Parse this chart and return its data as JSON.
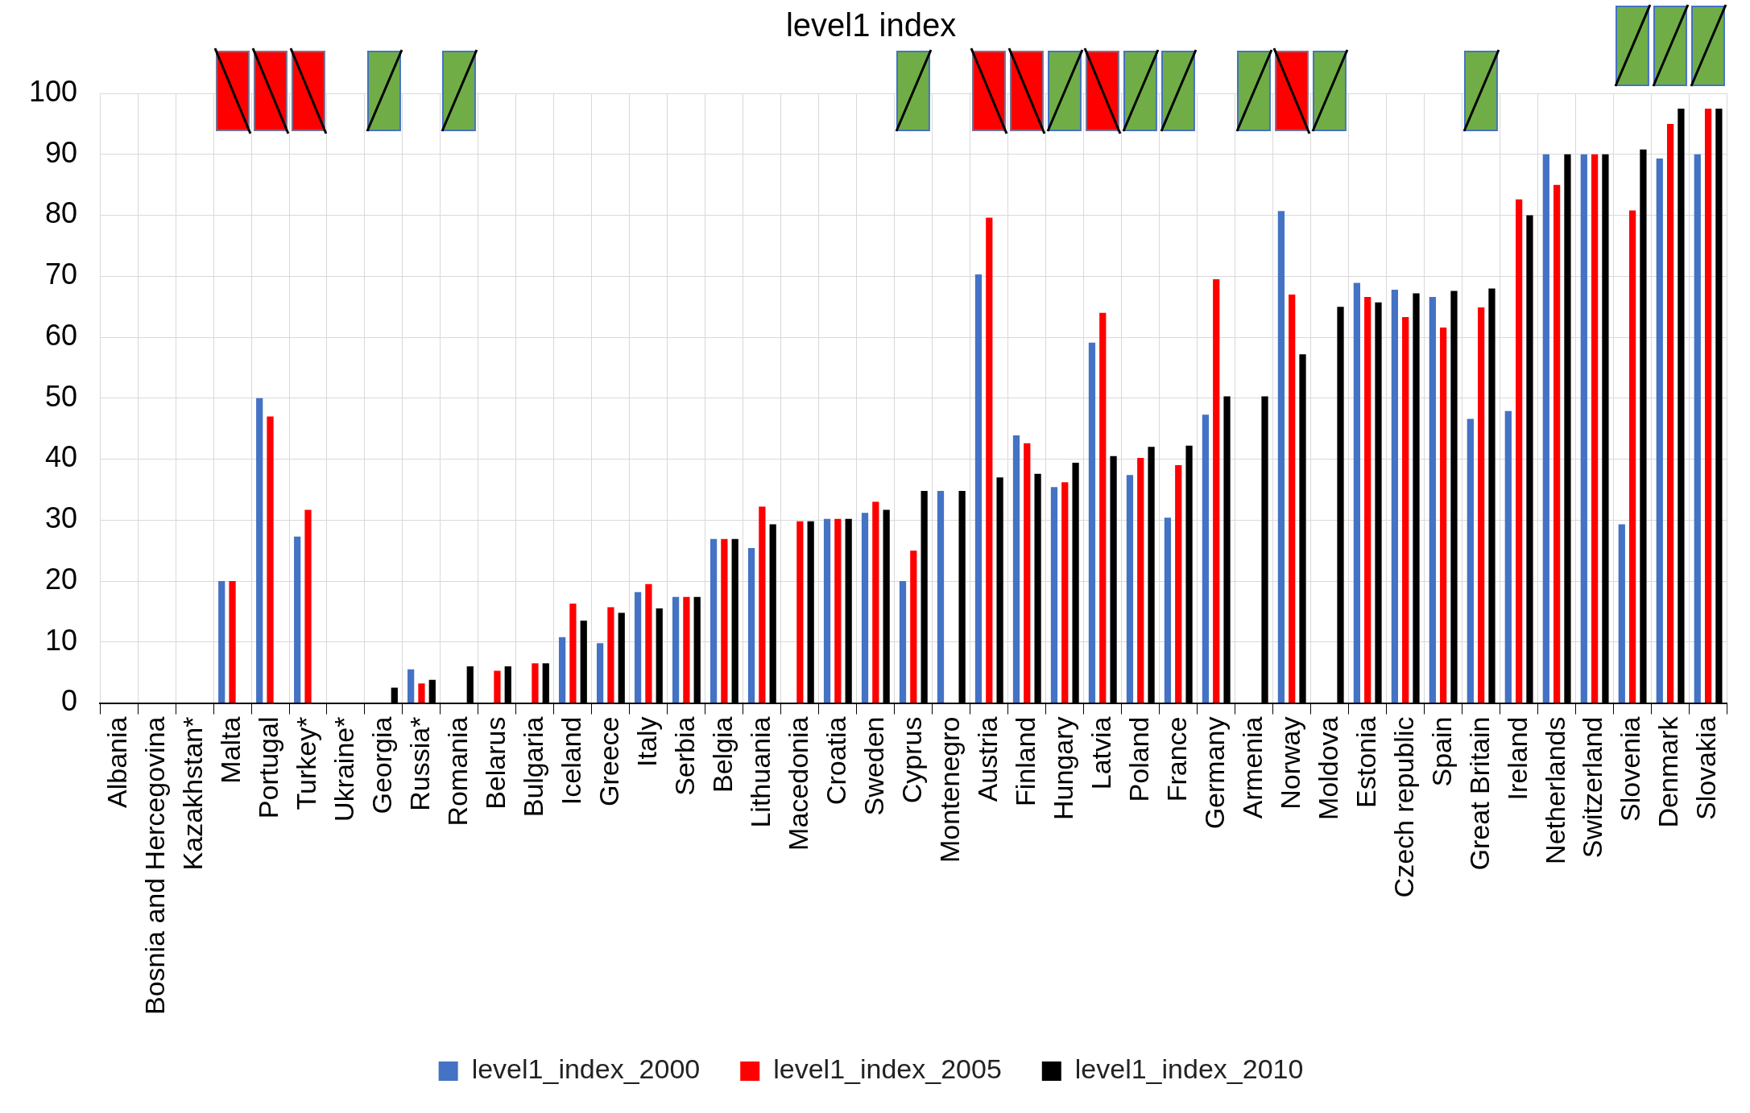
{
  "chart_data": {
    "type": "bar",
    "title": "level1 index",
    "categories": [
      "Albania",
      "Bosnia and Hercegovina",
      "Kazakhstan*",
      "Malta",
      "Portugal",
      "Turkey*",
      "Ukraine*",
      "Georgia",
      "Russia*",
      "Romania",
      "Belarus",
      "Bulgaria",
      "Iceland",
      "Greece",
      "Italy",
      "Serbia",
      "Belgia",
      "Lithuania",
      "Macedonia",
      "Croatia",
      "Sweden",
      "Cyprus",
      "Montenegro",
      "Austria",
      "Finland",
      "Hungary",
      "Latvia",
      "Poland",
      "France",
      "Germany",
      "Armenia",
      "Norway",
      "Moldova",
      "Estonia",
      "Czech republic",
      "Spain",
      "Great Britain",
      "Ireland",
      "Netherlands",
      "Switzerland",
      "Slovenia",
      "Denmark",
      "Slovakia"
    ],
    "series": [
      {
        "name": "level1_index_2000",
        "color": "#4472c4",
        "values": [
          null,
          null,
          null,
          20,
          50,
          27.3,
          null,
          null,
          5.5,
          null,
          null,
          null,
          10.8,
          9.8,
          18.2,
          17.4,
          26.9,
          25.4,
          null,
          30.2,
          31.2,
          20,
          34.8,
          70.3,
          43.9,
          35.4,
          59.1,
          37.4,
          30.4,
          47.3,
          null,
          80.7,
          null,
          68.9,
          67.8,
          66.6,
          46.6,
          47.9,
          90,
          90,
          29.3,
          89.3,
          90
        ]
      },
      {
        "name": "level1_index_2005",
        "color": "#ff0000",
        "values": [
          null,
          null,
          null,
          20,
          47,
          31.7,
          null,
          null,
          3.2,
          null,
          5.3,
          6.5,
          16.3,
          15.7,
          19.5,
          17.4,
          26.9,
          32.2,
          29.8,
          30.2,
          33,
          25,
          null,
          79.6,
          42.6,
          36.2,
          64,
          40.2,
          39,
          69.5,
          null,
          67,
          null,
          66.6,
          63.3,
          61.6,
          64.9,
          82.6,
          85,
          90,
          80.8,
          95,
          97.5
        ]
      },
      {
        "name": "level1_index_2010",
        "color": "#000000",
        "values": [
          null,
          null,
          null,
          null,
          null,
          null,
          null,
          2.5,
          3.8,
          6,
          6,
          6.5,
          13.5,
          14.8,
          15.5,
          17.4,
          26.9,
          29.3,
          29.8,
          30.2,
          31.7,
          34.8,
          34.8,
          37,
          37.6,
          39.4,
          40.5,
          42,
          42.2,
          50.3,
          50.3,
          57.2,
          65,
          65.7,
          67.2,
          67.6,
          68,
          80,
          90,
          90,
          90.8,
          97.5,
          97.5
        ]
      }
    ],
    "ylim": [
      0,
      100
    ],
    "yticks": [
      0,
      10,
      20,
      30,
      40,
      50,
      60,
      70,
      80,
      90,
      100
    ],
    "grid": true,
    "legend": "bottom"
  }
}
